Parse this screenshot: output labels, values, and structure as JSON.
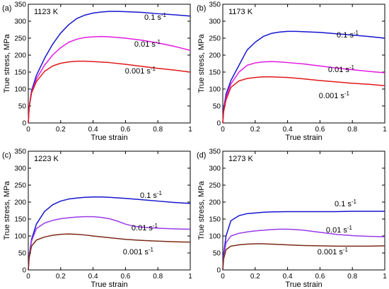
{
  "chart_data": [
    {
      "type": "line",
      "panel": "(a)",
      "annotation": "1123 K",
      "xlabel": "True strain",
      "ylabel": "True stress, MPa",
      "xlim": [
        0,
        1
      ],
      "ylim": [
        0,
        350
      ],
      "xticks": [
        0,
        0.2,
        0.4,
        0.6,
        0.8,
        1
      ],
      "yticks": [
        0,
        50,
        100,
        150,
        200,
        250,
        300,
        350
      ],
      "series": [
        {
          "label": "0.1 s",
          "label_exp": "-1",
          "color": "#1515d0",
          "x": [
            0,
            0.005,
            0.02,
            0.05,
            0.1,
            0.15,
            0.2,
            0.25,
            0.3,
            0.35,
            0.4,
            0.45,
            0.5,
            0.55,
            0.6,
            0.7,
            0.8,
            0.9,
            1.0
          ],
          "y": [
            0,
            45,
            95,
            140,
            190,
            232,
            265,
            290,
            308,
            318,
            324,
            327,
            329,
            329,
            328,
            326,
            322,
            319,
            315
          ]
        },
        {
          "label": "0.01 s",
          "label_exp": "-1",
          "color": "#e21be2",
          "x": [
            0,
            0.005,
            0.02,
            0.05,
            0.1,
            0.15,
            0.2,
            0.25,
            0.3,
            0.35,
            0.4,
            0.45,
            0.5,
            0.6,
            0.7,
            0.8,
            0.9,
            1.0
          ],
          "y": [
            0,
            45,
            90,
            130,
            170,
            200,
            222,
            238,
            247,
            252,
            254,
            255,
            254,
            250,
            244,
            236,
            226,
            214
          ]
        },
        {
          "label": "0.001 s",
          "label_exp": "-1",
          "color": "#e01818",
          "x": [
            0,
            0.005,
            0.02,
            0.05,
            0.1,
            0.15,
            0.2,
            0.25,
            0.3,
            0.35,
            0.4,
            0.5,
            0.6,
            0.7,
            0.8,
            0.9,
            1.0
          ],
          "y": [
            0,
            45,
            88,
            122,
            152,
            168,
            176,
            180,
            182,
            182,
            181,
            178,
            173,
            167,
            161,
            156,
            150
          ]
        }
      ]
    },
    {
      "type": "line",
      "panel": "(b)",
      "annotation": "1173 K",
      "xlabel": "True strain",
      "ylabel": "True stress, MPa",
      "xlim": [
        0,
        1
      ],
      "ylim": [
        0,
        350
      ],
      "xticks": [
        0,
        0.2,
        0.4,
        0.6,
        0.8,
        1
      ],
      "yticks": [
        0,
        50,
        100,
        150,
        200,
        250,
        300,
        350
      ],
      "series": [
        {
          "label": "0.1 s",
          "label_exp": "-1",
          "color": "#1515d0",
          "x": [
            0,
            0.005,
            0.02,
            0.05,
            0.1,
            0.15,
            0.2,
            0.25,
            0.3,
            0.35,
            0.4,
            0.45,
            0.5,
            0.6,
            0.7,
            0.8,
            0.9,
            1.0
          ],
          "y": [
            0,
            40,
            85,
            125,
            170,
            215,
            238,
            255,
            264,
            268,
            270,
            270,
            269,
            267,
            263,
            259,
            255,
            250
          ]
        },
        {
          "label": "0.01 s",
          "label_exp": "-1",
          "color": "#e21be2",
          "x": [
            0,
            0.005,
            0.02,
            0.05,
            0.1,
            0.15,
            0.2,
            0.25,
            0.3,
            0.35,
            0.4,
            0.5,
            0.6,
            0.7,
            0.8,
            0.9,
            1.0
          ],
          "y": [
            0,
            35,
            75,
            115,
            150,
            170,
            177,
            180,
            181,
            180,
            178,
            174,
            168,
            162,
            157,
            152,
            148
          ]
        },
        {
          "label": "0.001 s",
          "label_exp": "-1",
          "color": "#e01818",
          "x": [
            0,
            0.005,
            0.02,
            0.05,
            0.1,
            0.15,
            0.2,
            0.25,
            0.3,
            0.35,
            0.4,
            0.5,
            0.6,
            0.7,
            0.8,
            0.9,
            1.0
          ],
          "y": [
            0,
            32,
            68,
            105,
            124,
            131,
            134,
            136,
            136,
            135,
            134,
            130,
            125,
            121,
            117,
            114,
            110
          ]
        }
      ]
    },
    {
      "type": "line",
      "panel": "(c)",
      "annotation": "1223 K",
      "xlabel": "True strain",
      "ylabel": "True stress, MPa",
      "xlim": [
        0,
        1
      ],
      "ylim": [
        0,
        350
      ],
      "xticks": [
        0,
        0.2,
        0.4,
        0.6,
        0.8,
        1
      ],
      "yticks": [
        0,
        50,
        100,
        150,
        200,
        250,
        300,
        350
      ],
      "series": [
        {
          "label": "0.1 s",
          "label_exp": "-1",
          "color": "#1515d0",
          "x": [
            0,
            0.005,
            0.02,
            0.05,
            0.1,
            0.15,
            0.2,
            0.25,
            0.3,
            0.35,
            0.4,
            0.45,
            0.5,
            0.6,
            0.7,
            0.8,
            0.9,
            1.0
          ],
          "y": [
            0,
            40,
            90,
            135,
            172,
            192,
            203,
            209,
            212,
            214,
            215,
            215,
            214,
            211,
            207,
            203,
            199,
            196
          ]
        },
        {
          "label": "0.01 s",
          "label_exp": "-1",
          "color": "#9a3be8",
          "x": [
            0,
            0.005,
            0.02,
            0.05,
            0.1,
            0.15,
            0.2,
            0.25,
            0.3,
            0.35,
            0.4,
            0.45,
            0.5,
            0.55,
            0.6,
            0.65,
            0.7,
            0.8,
            0.9,
            1.0
          ],
          "y": [
            0,
            38,
            85,
            122,
            138,
            146,
            151,
            154,
            156,
            157,
            157,
            155,
            151,
            144,
            135,
            129,
            126,
            123,
            121,
            120
          ]
        },
        {
          "label": "0.001 s",
          "label_exp": "-1",
          "color": "#7a2a18",
          "x": [
            0,
            0.005,
            0.02,
            0.05,
            0.1,
            0.15,
            0.2,
            0.25,
            0.3,
            0.35,
            0.4,
            0.5,
            0.6,
            0.7,
            0.8,
            0.9,
            1.0
          ],
          "y": [
            0,
            35,
            70,
            88,
            97,
            102,
            105,
            106,
            105,
            103,
            100,
            95,
            90,
            87,
            85,
            83,
            82
          ]
        }
      ]
    },
    {
      "type": "line",
      "panel": "(d)",
      "annotation": "1273 K",
      "xlabel": "True strain",
      "ylabel": "True stress, MPa",
      "xlim": [
        0,
        1
      ],
      "ylim": [
        0,
        350
      ],
      "xticks": [
        0,
        0.2,
        0.4,
        0.6,
        0.8,
        1
      ],
      "yticks": [
        0,
        50,
        100,
        150,
        200,
        250,
        300,
        350
      ],
      "series": [
        {
          "label": "0.1 s",
          "label_exp": "-1",
          "color": "#1515d0",
          "x": [
            0,
            0.005,
            0.02,
            0.05,
            0.1,
            0.15,
            0.2,
            0.25,
            0.3,
            0.4,
            0.5,
            0.6,
            0.7,
            0.8,
            0.9,
            1.0
          ],
          "y": [
            0,
            45,
            100,
            145,
            160,
            166,
            168,
            170,
            171,
            172,
            172,
            172,
            172,
            173,
            173,
            173
          ]
        },
        {
          "label": "0.01 s",
          "label_exp": "-1",
          "color": "#9a3be8",
          "x": [
            0,
            0.005,
            0.02,
            0.05,
            0.1,
            0.15,
            0.2,
            0.25,
            0.3,
            0.35,
            0.4,
            0.45,
            0.5,
            0.6,
            0.7,
            0.8,
            0.9,
            1.0
          ],
          "y": [
            0,
            40,
            80,
            100,
            108,
            112,
            115,
            117,
            119,
            120,
            120,
            119,
            117,
            111,
            105,
            101,
            99,
            98
          ]
        },
        {
          "label": "0.001 s",
          "label_exp": "-1",
          "color": "#7a2a18",
          "x": [
            0,
            0.005,
            0.02,
            0.05,
            0.1,
            0.15,
            0.2,
            0.25,
            0.3,
            0.4,
            0.5,
            0.6,
            0.7,
            0.8,
            0.9,
            1.0
          ],
          "y": [
            0,
            32,
            60,
            70,
            74,
            76,
            77,
            77,
            76,
            74,
            72,
            71,
            70,
            70,
            70,
            71
          ]
        }
      ]
    }
  ]
}
